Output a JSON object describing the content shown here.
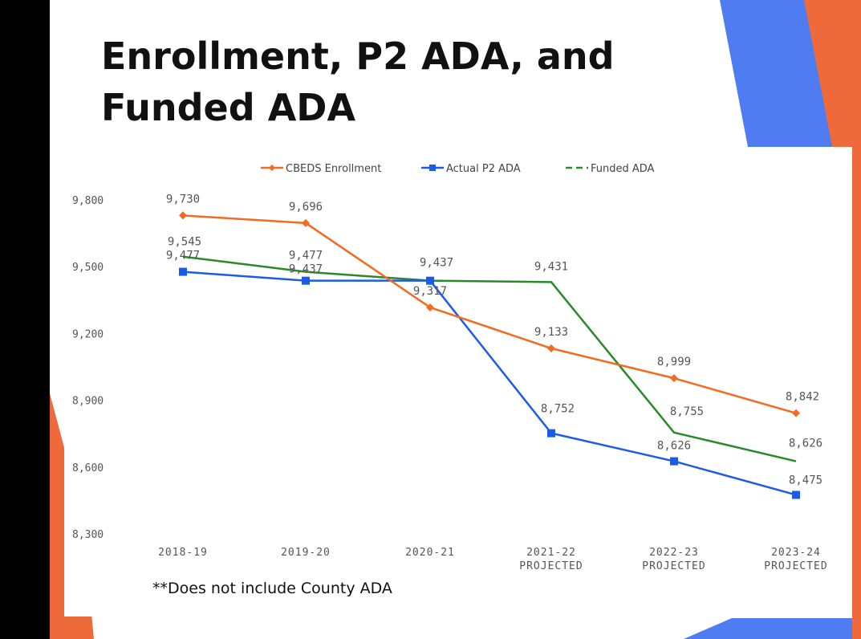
{
  "slide": {
    "title": "Enrollment, P2 ADA, and Funded ADA",
    "footnote": "**Does not include County ADA",
    "colors": {
      "background": "#000000",
      "accent_blue": "#4f7cf0",
      "accent_orange": "#ef6a3a"
    }
  },
  "chart_data": {
    "type": "line",
    "categories": [
      [
        "2018-19"
      ],
      [
        "2019-20"
      ],
      [
        "2020-21"
      ],
      [
        "2021-22",
        "PROJECTED"
      ],
      [
        "2022-23",
        "PROJECTED"
      ],
      [
        "2023-24",
        "PROJECTED"
      ]
    ],
    "ylim": [
      8300,
      9800
    ],
    "yticks": [
      "9,800",
      "9,500",
      "9,200",
      "8,900",
      "8,600",
      "8,300"
    ],
    "ytick_values": [
      9800,
      9500,
      9200,
      8900,
      8600,
      8300
    ],
    "grid": false,
    "legend_position": "top",
    "series": [
      {
        "name": "CBEDS Enrollment",
        "color": "#f26b21",
        "marker": "diamond",
        "dash": false,
        "values": [
          9730,
          9696,
          9317,
          9133,
          8999,
          8842
        ],
        "labels": [
          "9,730",
          "9,696",
          "9,317",
          "9,133",
          "8,999",
          "8,842"
        ]
      },
      {
        "name": "Actual P2 ADA",
        "color": "#1a5ce8",
        "marker": "square",
        "dash": false,
        "values": [
          9477,
          9437,
          9437,
          8752,
          8626,
          8475
        ],
        "labels": [
          "9,477",
          "9,437",
          "9,437",
          "8,752",
          "8,626",
          "8,475"
        ]
      },
      {
        "name": "Funded ADA",
        "color": "#2a8a2a",
        "marker": "none",
        "dash": true,
        "values": [
          9545,
          9477,
          9437,
          9431,
          8755,
          8626
        ],
        "labels": [
          "9,545",
          "9,477",
          "",
          "9,431",
          "8,755",
          "8,626"
        ]
      }
    ]
  }
}
